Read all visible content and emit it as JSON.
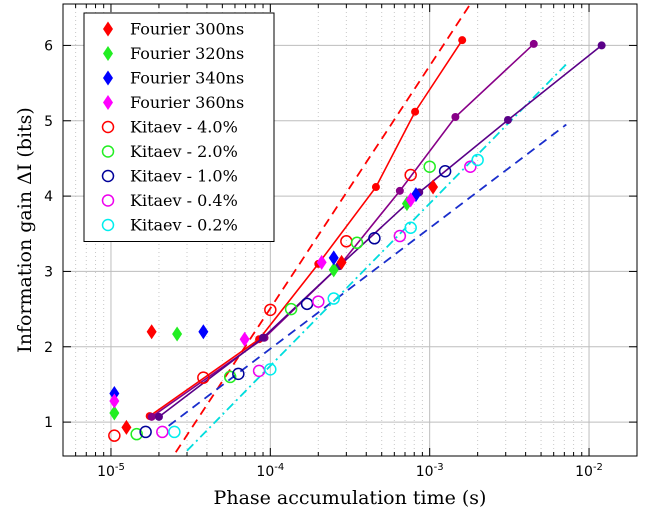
{
  "chart_data": {
    "type": "scatter",
    "xlabel": "Phase accumulation time (s)",
    "ylabel": "Information gain ΔI (bits)",
    "xscale": "log",
    "xlim": [
      5e-06,
      0.02
    ],
    "ylim": [
      0.55,
      6.55
    ],
    "x_ticks": [
      {
        "value": 1e-05,
        "base": "10",
        "exp": "-5"
      },
      {
        "value": 0.0001,
        "base": "10",
        "exp": "-4"
      },
      {
        "value": 0.001,
        "base": "10",
        "exp": "-3"
      },
      {
        "value": 0.01,
        "base": "10",
        "exp": "-2"
      }
    ],
    "y_ticks": [
      1,
      2,
      3,
      4,
      5,
      6
    ],
    "grid": true,
    "legend_position": "top-left",
    "fourier_points": [
      {
        "series": "Fourier 300ns",
        "color": "#ff0000",
        "x": 1.8e-05,
        "y": 2.2
      },
      {
        "series": "Fourier 320ns",
        "color": "#22ee22",
        "x": 2.6e-05,
        "y": 2.17
      },
      {
        "series": "Fourier 340ns",
        "color": "#0000ff",
        "x": 3.8e-05,
        "y": 2.2
      },
      {
        "series": "Fourier 360ns",
        "color": "#ff00ff",
        "x": 6.9e-05,
        "y": 2.1
      },
      {
        "series": "Fourier 300ns",
        "color": "#ff0000",
        "x": 1.25e-05,
        "y": 0.93
      },
      {
        "series": "Fourier 320ns",
        "color": "#22ee22",
        "x": 1.05e-05,
        "y": 1.12
      },
      {
        "series": "Fourier 340ns",
        "color": "#0000ff",
        "x": 1.05e-05,
        "y": 1.38
      },
      {
        "series": "Fourier 360ns",
        "color": "#ff00ff",
        "x": 1.05e-05,
        "y": 1.28
      },
      {
        "series": "Fourier 300ns",
        "color": "#ff0000",
        "x": 0.00028,
        "y": 3.12
      },
      {
        "series": "Fourier 320ns",
        "color": "#22ee22",
        "x": 0.00025,
        "y": 3.02
      },
      {
        "series": "Fourier 340ns",
        "color": "#0000ff",
        "x": 0.00025,
        "y": 3.18
      },
      {
        "series": "Fourier 360ns",
        "color": "#ff00ff",
        "x": 0.00021,
        "y": 3.12
      },
      {
        "series": "Fourier 300ns",
        "color": "#ff0000",
        "x": 0.00105,
        "y": 4.12
      },
      {
        "series": "Fourier 320ns",
        "color": "#22ee22",
        "x": 0.00072,
        "y": 3.9
      },
      {
        "series": "Fourier 340ns",
        "color": "#0000ff",
        "x": 0.00082,
        "y": 4.02
      },
      {
        "series": "Fourier 360ns",
        "color": "#ff00ff",
        "x": 0.00076,
        "y": 3.95
      }
    ],
    "kitaev_series": [
      {
        "name": "Kitaev - 4.0%",
        "color": "#ff0000",
        "points": [
          [
            1.05e-05,
            0.82
          ],
          [
            3.8e-05,
            1.59
          ],
          [
            0.0001,
            2.49
          ],
          [
            0.0003,
            3.4
          ],
          [
            0.00076,
            4.28
          ]
        ]
      },
      {
        "name": "Kitaev - 2.0%",
        "color": "#22ee22",
        "points": [
          [
            1.45e-05,
            0.84
          ],
          [
            5.6e-05,
            1.6
          ],
          [
            0.000135,
            2.5
          ],
          [
            0.00035,
            3.38
          ],
          [
            0.001,
            4.39
          ]
        ]
      },
      {
        "name": "Kitaev - 1.0%",
        "color": "#000099",
        "points": [
          [
            1.65e-05,
            0.87
          ],
          [
            6.3e-05,
            1.64
          ],
          [
            0.00017,
            2.57
          ],
          [
            0.00045,
            3.44
          ],
          [
            0.00125,
            4.33
          ]
        ]
      },
      {
        "name": "Kitaev - 0.4%",
        "color": "#ee00ee",
        "points": [
          [
            2.1e-05,
            0.87
          ],
          [
            8.5e-05,
            1.68
          ],
          [
            0.0002,
            2.6
          ],
          [
            0.00065,
            3.47
          ],
          [
            0.0018,
            4.39
          ]
        ]
      },
      {
        "name": "Kitaev - 0.2%",
        "color": "#00eeee",
        "points": [
          [
            2.5e-05,
            0.87
          ],
          [
            0.0001,
            1.7
          ],
          [
            0.00025,
            2.64
          ],
          [
            0.00076,
            3.58
          ],
          [
            0.002,
            4.48
          ]
        ]
      }
    ],
    "legend": [
      {
        "label": "Fourier 300ns",
        "marker": "diamond",
        "color": "#ff0000"
      },
      {
        "label": "Fourier 320ns",
        "marker": "diamond",
        "color": "#22ee22"
      },
      {
        "label": "Fourier 340ns",
        "marker": "diamond",
        "color": "#0000ff"
      },
      {
        "label": "Fourier 360ns",
        "marker": "diamond",
        "color": "#ff00ff"
      },
      {
        "label": "Kitaev - 4.0%",
        "marker": "circle",
        "color": "#ff0000"
      },
      {
        "label": "Kitaev - 2.0%",
        "marker": "circle",
        "color": "#22ee22"
      },
      {
        "label": "Kitaev - 1.0%",
        "marker": "circle",
        "color": "#000099"
      },
      {
        "label": "Kitaev - 0.4%",
        "marker": "circle",
        "color": "#ee00ee"
      },
      {
        "label": "Kitaev - 0.2%",
        "marker": "circle",
        "color": "#00eeee"
      }
    ],
    "solid_curves": [
      {
        "color": "#ff0000",
        "points": [
          [
            1.75e-05,
            1.08
          ],
          [
            8.5e-05,
            2.1
          ],
          [
            0.0002,
            3.1
          ],
          [
            0.00046,
            4.12
          ],
          [
            0.00081,
            5.12
          ],
          [
            0.0016,
            6.07
          ]
        ]
      },
      {
        "color": "#880088",
        "points": [
          [
            1.8e-05,
            1.07
          ],
          [
            9.2e-05,
            2.12
          ],
          [
            0.00027,
            3.07
          ],
          [
            0.00065,
            4.07
          ],
          [
            0.00145,
            5.05
          ],
          [
            0.0045,
            6.02
          ]
        ]
      },
      {
        "color": "#5a0088",
        "points": [
          [
            2e-05,
            1.07
          ],
          [
            9e-05,
            2.12
          ],
          [
            0.00027,
            3.07
          ],
          [
            0.00086,
            4.05
          ],
          [
            0.0031,
            5.01
          ],
          [
            0.012,
            6.0
          ]
        ]
      }
    ],
    "dashed_curves": [
      {
        "color": "#ff0000",
        "style": "dash",
        "points": [
          [
            2.55e-05,
            0.6
          ],
          [
            0.0018,
            6.55
          ]
        ]
      },
      {
        "color": "#1a2ecc",
        "style": "dash",
        "points": [
          [
            2.3e-05,
            0.95
          ],
          [
            0.0072,
            4.95
          ]
        ]
      },
      {
        "color": "#00dddd",
        "style": "dashdot",
        "points": [
          [
            3e-05,
            0.62
          ],
          [
            0.0072,
            5.75
          ]
        ]
      }
    ]
  }
}
